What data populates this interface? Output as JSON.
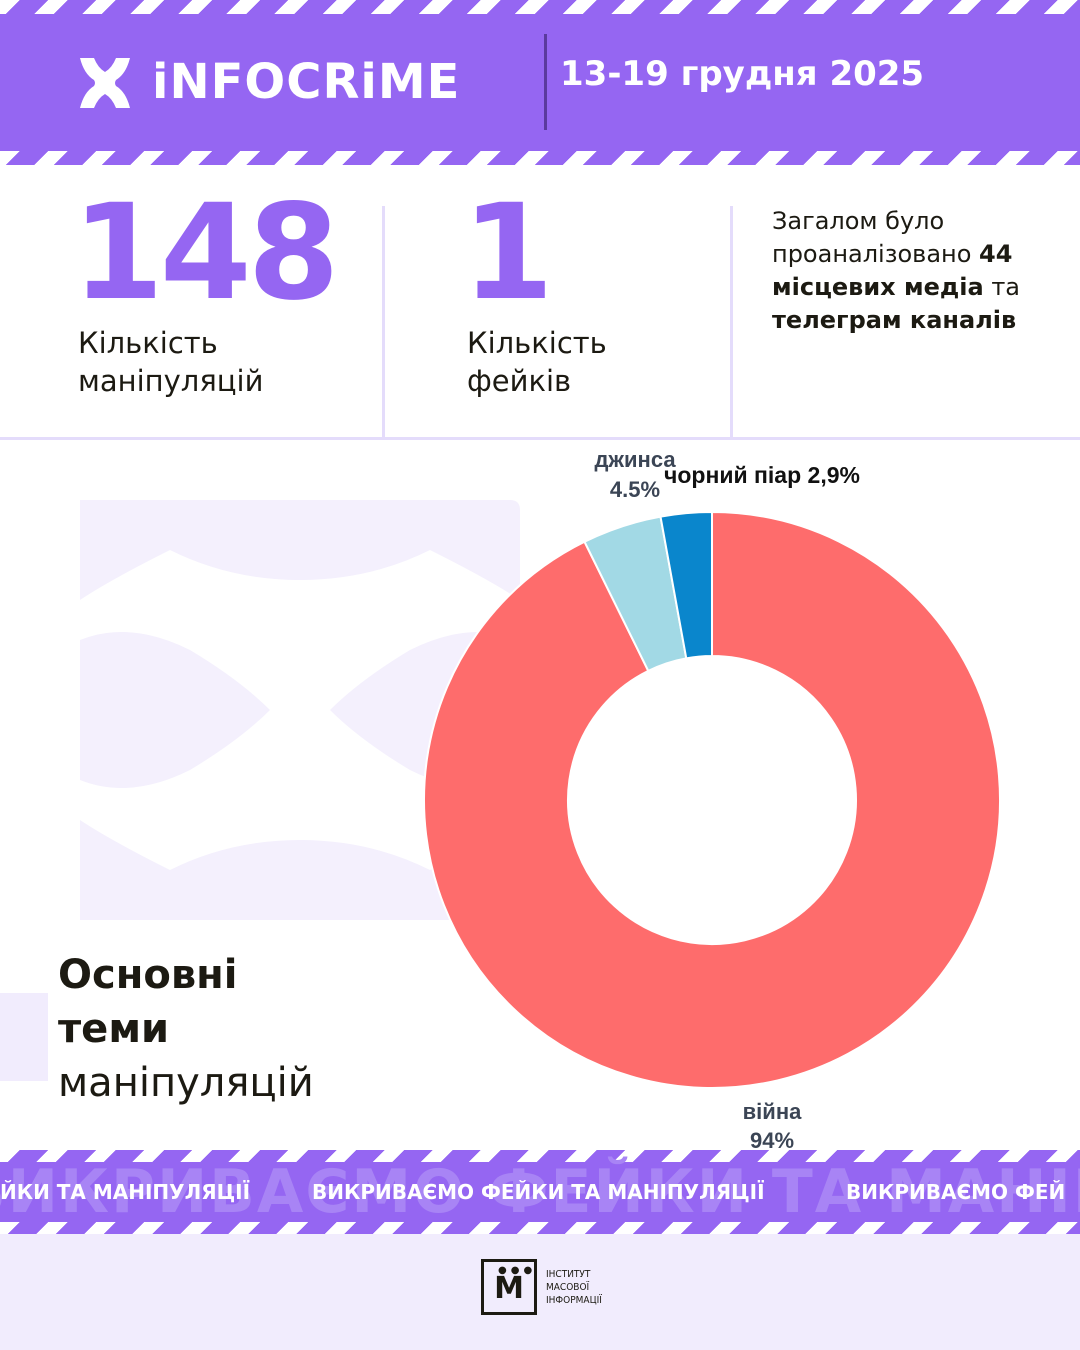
{
  "header": {
    "brand": "iNFOCRiME",
    "date_range": "13-19 грудня 2025"
  },
  "stats": [
    {
      "value": "148",
      "label_line1": "Кількість",
      "label_line2": "маніпуляцій"
    },
    {
      "value": "1",
      "label_line1": "Кількість",
      "label_line2": "фейків"
    }
  ],
  "summary": {
    "part1": "Загалом було проаналізовано ",
    "count": "44",
    "bold1": "місцевих медіа",
    "part2": " та ",
    "bold2": "телеграм каналів"
  },
  "section_title": {
    "line1": "Основні",
    "line2": "теми",
    "line3": "маніпуляцій"
  },
  "chart_data": {
    "type": "pie",
    "style": "donut",
    "slices": [
      {
        "label": "війна",
        "value_label": "94%",
        "value": 94,
        "color": "#fe6c6c"
      },
      {
        "label": "джинса",
        "value_label": "4.5%",
        "value": 4.5,
        "color": "#a2d9e5"
      },
      {
        "label": "чорний піар 2,9%",
        "value": 2.9,
        "color": "#0a86cc"
      }
    ]
  },
  "ticker": {
    "text": "ВИКРИВАЄМО ФЕЙКИ ТА МАНІПУЛЯЦІЇ",
    "partial_left": "ЙКИ ТА МАНІПУЛЯЦІЇ",
    "partial_right": "ВИКРИВАЄМО ФЕЙ",
    "background": "ВИКРИВАЄМО ФЕЙКИ ТА МАНІПУЛЯЦІЇ"
  },
  "footer": {
    "logo_letter": "М",
    "org_line1": "ІНСТИТУТ",
    "org_line2": "МАСОВОЇ",
    "org_line3": "ІНФОРМАЦІЇ"
  },
  "colors": {
    "brand_purple": "#9566f2",
    "war": "#fe6c6c",
    "jeans": "#a2d9e5",
    "black_pr": "#0a86cc"
  }
}
